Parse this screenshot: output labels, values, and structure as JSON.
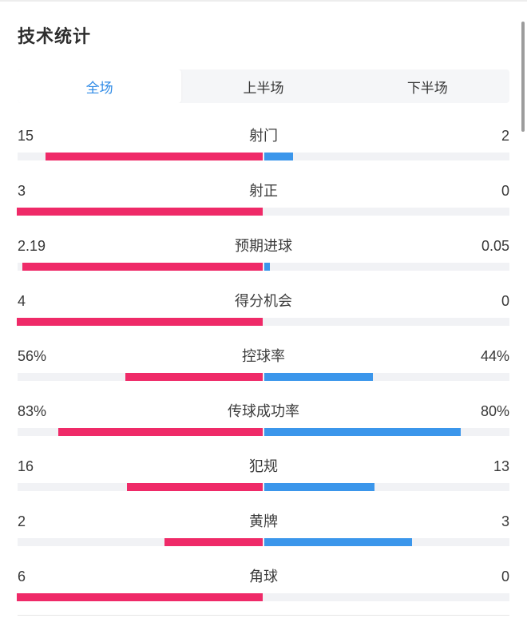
{
  "header": {
    "title": "技术统计"
  },
  "tabs": {
    "items": [
      {
        "label": "全场",
        "active": true
      },
      {
        "label": "上半场",
        "active": false
      },
      {
        "label": "下半场",
        "active": false
      }
    ]
  },
  "colors": {
    "home_bar": "#ef2a68",
    "away_bar": "#3b96eb",
    "tab_active_text": "#2e8ae6",
    "bar_track": "#f1f2f5"
  },
  "chart_data": {
    "type": "bar",
    "title": "技术统计",
    "legend_position": "none",
    "layout": "center-out paired horizontal bars, home grows left (pink), away grows right (blue)",
    "rows": [
      {
        "label": "射门",
        "left": "15",
        "right": "2",
        "left_num": 15,
        "right_num": 2,
        "percent": false
      },
      {
        "label": "射正",
        "left": "3",
        "right": "0",
        "left_num": 3,
        "right_num": 0,
        "percent": false
      },
      {
        "label": "预期进球",
        "left": "2.19",
        "right": "0.05",
        "left_num": 2.19,
        "right_num": 0.05,
        "percent": false
      },
      {
        "label": "得分机会",
        "left": "4",
        "right": "0",
        "left_num": 4,
        "right_num": 0,
        "percent": false
      },
      {
        "label": "控球率",
        "left": "56%",
        "right": "44%",
        "left_num": 56,
        "right_num": 44,
        "percent": true
      },
      {
        "label": "传球成功率",
        "left": "83%",
        "right": "80%",
        "left_num": 83,
        "right_num": 80,
        "percent": true
      },
      {
        "label": "犯规",
        "left": "16",
        "right": "13",
        "left_num": 16,
        "right_num": 13,
        "percent": false
      },
      {
        "label": "黄牌",
        "left": "2",
        "right": "3",
        "left_num": 2,
        "right_num": 3,
        "percent": false
      },
      {
        "label": "角球",
        "left": "6",
        "right": "0",
        "left_num": 6,
        "right_num": 0,
        "percent": false
      }
    ]
  }
}
